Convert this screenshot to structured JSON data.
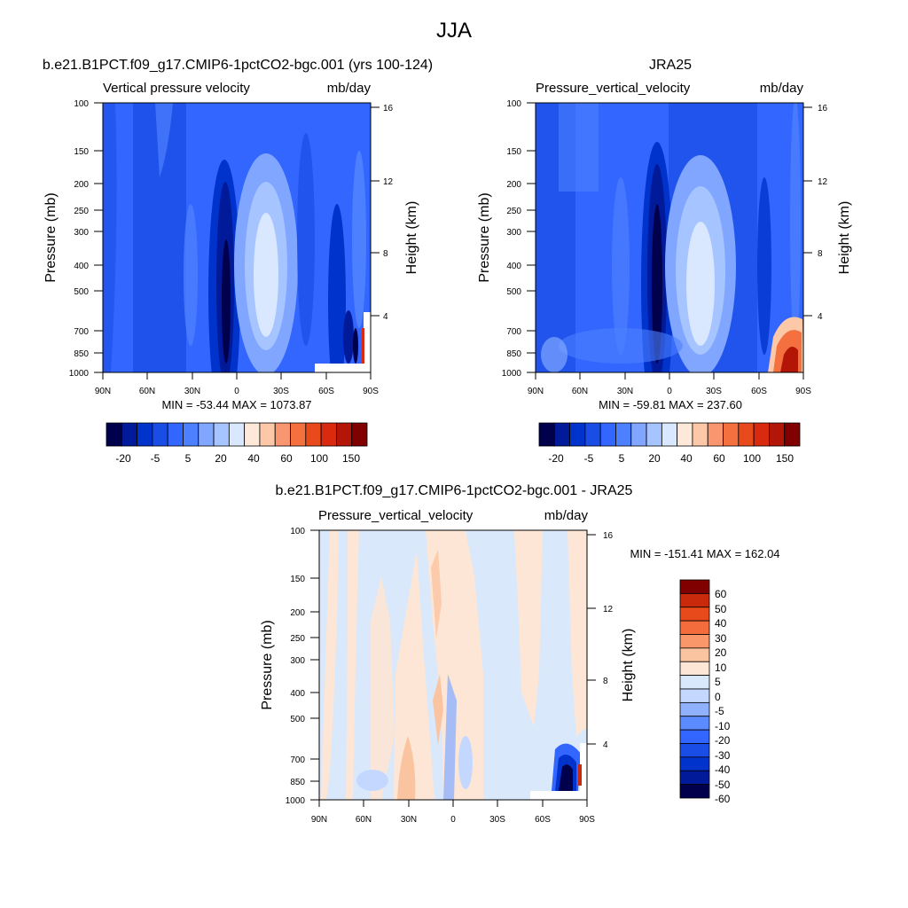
{
  "figure_title": "JJA",
  "colors": {
    "model_levels": [
      "#00004c",
      "#001a99",
      "#0033cc",
      "#1a4de6",
      "#3366ff",
      "#4d80ff",
      "#80a6ff",
      "#a6c4ff",
      "#d9e8ff",
      "#fde8d9",
      "#fcc8a8",
      "#f99670",
      "#f4703f",
      "#e84a1b",
      "#d92a0f",
      "#b31506",
      "#800000"
    ],
    "diff_levels": [
      "#00004c",
      "#001a99",
      "#0033cc",
      "#1a4de6",
      "#3366ff",
      "#5c8aff",
      "#8fb1ff",
      "#c4d8ff",
      "#dae8fb",
      "#fde6d5",
      "#fbc4a0",
      "#f9966a",
      "#f46c3c",
      "#e84a1b",
      "#c92a0c",
      "#800000"
    ]
  },
  "chart_data": [
    {
      "type": "heatmap",
      "panel_title": "b.e21.B1PCT.f09_g17.CMIP6-1pctCO2-bgc.001 (yrs 100-124)",
      "left_label": "Vertical pressure velocity",
      "right_label": "mb/day",
      "ylabel": "Pressure (mb)",
      "ylabel_right": "Height (km)",
      "x_ticks": [
        "90N",
        "60N",
        "30N",
        "0",
        "30S",
        "60S",
        "90S"
      ],
      "y_ticks": [
        "100",
        "150",
        "200",
        "250",
        "300",
        "400",
        "500",
        "700",
        "850",
        "1000"
      ],
      "y2_ticks": [
        "16",
        "12",
        "8",
        "4"
      ],
      "min_max": "MIN = -53.44  MAX = 1073.87",
      "colorbar_labels": [
        "-20",
        "-5",
        "5",
        "20",
        "40",
        "60",
        "100",
        "150"
      ],
      "min": -53.44,
      "max": 1073.87
    },
    {
      "type": "heatmap",
      "panel_title": "JRA25",
      "left_label": "Pressure_vertical_velocity",
      "right_label": "mb/day",
      "ylabel": "Pressure (mb)",
      "ylabel_right": "Height (km)",
      "x_ticks": [
        "90N",
        "60N",
        "30N",
        "0",
        "30S",
        "60S",
        "90S"
      ],
      "y_ticks": [
        "100",
        "150",
        "200",
        "250",
        "300",
        "400",
        "500",
        "700",
        "850",
        "1000"
      ],
      "y2_ticks": [
        "16",
        "12",
        "8",
        "4"
      ],
      "min_max": "MIN = -59.81  MAX = 237.60",
      "colorbar_labels": [
        "-20",
        "-5",
        "5",
        "20",
        "40",
        "60",
        "100",
        "150"
      ],
      "min": -59.81,
      "max": 237.6
    },
    {
      "type": "heatmap",
      "panel_title": "b.e21.B1PCT.f09_g17.CMIP6-1pctCO2-bgc.001 - JRA25",
      "left_label": "Pressure_vertical_velocity",
      "right_label": "mb/day",
      "ylabel": "Pressure (mb)",
      "ylabel_right": "Height (km)",
      "x_ticks": [
        "90N",
        "60N",
        "30N",
        "0",
        "30S",
        "60S",
        "90S"
      ],
      "y_ticks": [
        "100",
        "150",
        "200",
        "250",
        "300",
        "400",
        "500",
        "700",
        "850",
        "1000"
      ],
      "y2_ticks": [
        "16",
        "12",
        "8",
        "4"
      ],
      "min_max": "MIN = -151.41  MAX = 162.04",
      "colorbar_labels": [
        "60",
        "50",
        "40",
        "30",
        "20",
        "10",
        "5",
        "0",
        "-5",
        "-10",
        "-20",
        "-30",
        "-40",
        "-50",
        "-60"
      ],
      "min": -151.41,
      "max": 162.04
    }
  ]
}
